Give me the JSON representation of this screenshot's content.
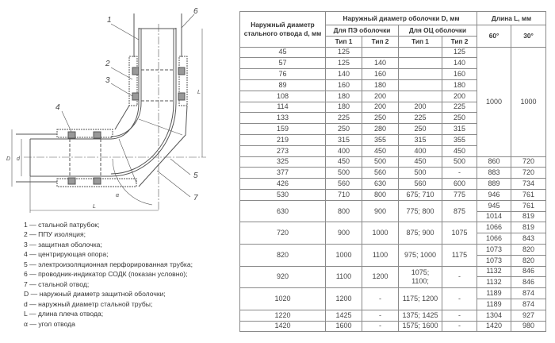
{
  "drawing": {
    "labels": {
      "p1": "1",
      "p2": "2",
      "p3": "3",
      "p4": "4",
      "p5": "5",
      "p6": "6",
      "p7": "7",
      "D": "D",
      "d": "d",
      "L_bottom": "L",
      "L_right": "L",
      "alpha": "α"
    },
    "line_color": "#555555"
  },
  "legend": [
    "1 — стальной патрубок;",
    "2 — ППУ изоляция;",
    "3 — защитная оболочка;",
    "4 — центрирующая опора;",
    "5 — электроизоляционная перфорированная трубка;",
    "6 — проводник-индикатор СОДК (показан условно);",
    "7 — стальной отвод;",
    "D — наружный диаметр защитной оболочки;",
    "d — наружный диаметр стальной трубы;",
    "L — длина плеча отвода;",
    "α — угол отвода"
  ],
  "table": {
    "headers": {
      "d": "Наружный диаметр стального отвода d, мм",
      "D": "Наружный диаметр оболочки D, мм",
      "L": "Длина L, мм",
      "pe": "Для ПЭ оболочки",
      "oc": "Для ОЦ оболочки",
      "a60": "60°",
      "a30": "30°",
      "type1": "Тип 1",
      "type2": "Тип 2"
    },
    "merged_L": {
      "a60": "1000",
      "a30": "1000"
    },
    "rows_merged": [
      {
        "d": "45",
        "pe1": "125",
        "pe2": "",
        "oc1": "",
        "oc2": "125"
      },
      {
        "d": "57",
        "pe1": "125",
        "pe2": "140",
        "oc1": "",
        "oc2": "140"
      },
      {
        "d": "76",
        "pe1": "140",
        "pe2": "160",
        "oc1": "",
        "oc2": "160"
      },
      {
        "d": "89",
        "pe1": "160",
        "pe2": "180",
        "oc1": "",
        "oc2": "180"
      },
      {
        "d": "108",
        "pe1": "180",
        "pe2": "200",
        "oc1": "",
        "oc2": "200"
      },
      {
        "d": "114",
        "pe1": "180",
        "pe2": "200",
        "oc1": "200",
        "oc2": "225"
      },
      {
        "d": "133",
        "pe1": "225",
        "pe2": "250",
        "oc1": "225",
        "oc2": "250"
      },
      {
        "d": "159",
        "pe1": "250",
        "pe2": "280",
        "oc1": "250",
        "oc2": "315"
      },
      {
        "d": "219",
        "pe1": "315",
        "pe2": "355",
        "oc1": "315",
        "oc2": "355"
      },
      {
        "d": "273",
        "pe1": "400",
        "pe2": "450",
        "oc1": "400",
        "oc2": "450"
      }
    ],
    "rows": [
      {
        "d": "325",
        "pe1": "450",
        "pe2": "500",
        "oc1": "450",
        "oc2": "500",
        "L": [
          [
            "860",
            "720"
          ]
        ]
      },
      {
        "d": "377",
        "pe1": "500",
        "pe2": "560",
        "oc1": "500",
        "oc2": "-",
        "L": [
          [
            "883",
            "720"
          ]
        ]
      },
      {
        "d": "426",
        "pe1": "560",
        "pe2": "630",
        "oc1": "560",
        "oc2": "600",
        "L": [
          [
            "889",
            "734"
          ]
        ]
      },
      {
        "d": "530",
        "pe1": "710",
        "pe2": "800",
        "oc1": "675; 710",
        "oc2": "775",
        "L": [
          [
            "946",
            "761"
          ]
        ]
      },
      {
        "d": "630",
        "pe1": "800",
        "pe2": "900",
        "oc1": "775; 800",
        "oc2": "875",
        "L": [
          [
            "945",
            "761"
          ],
          [
            "1014",
            "819"
          ]
        ]
      },
      {
        "d": "720",
        "pe1": "900",
        "pe2": "1000",
        "oc1": "875; 900",
        "oc2": "1075",
        "L": [
          [
            "1066",
            "819"
          ],
          [
            "1066",
            "843"
          ]
        ]
      },
      {
        "d": "820",
        "pe1": "1000",
        "pe2": "1100",
        "oc1": "975; 1000",
        "oc2": "1175",
        "L": [
          [
            "1073",
            "820"
          ],
          [
            "1073",
            "820"
          ]
        ]
      },
      {
        "d": "920",
        "pe1": "1100",
        "pe2": "1200",
        "oc1": "1075;\n1100;",
        "oc2": "-",
        "L": [
          [
            "1132",
            "846"
          ],
          [
            "1132",
            "846"
          ]
        ]
      },
      {
        "d": "1020",
        "pe1": "1200",
        "pe2": "-",
        "oc1": "1175; 1200",
        "oc2": "-",
        "L": [
          [
            "1189",
            "874"
          ],
          [
            "1189",
            "874"
          ]
        ]
      },
      {
        "d": "1220",
        "pe1": "1425",
        "pe2": "-",
        "oc1": "1375; 1425",
        "oc2": "-",
        "L": [
          [
            "1304",
            "927"
          ]
        ]
      },
      {
        "d": "1420",
        "pe1": "1600",
        "pe2": "-",
        "oc1": "1575; 1600",
        "oc2": "-",
        "L": [
          [
            "1420",
            "980"
          ]
        ]
      }
    ]
  }
}
